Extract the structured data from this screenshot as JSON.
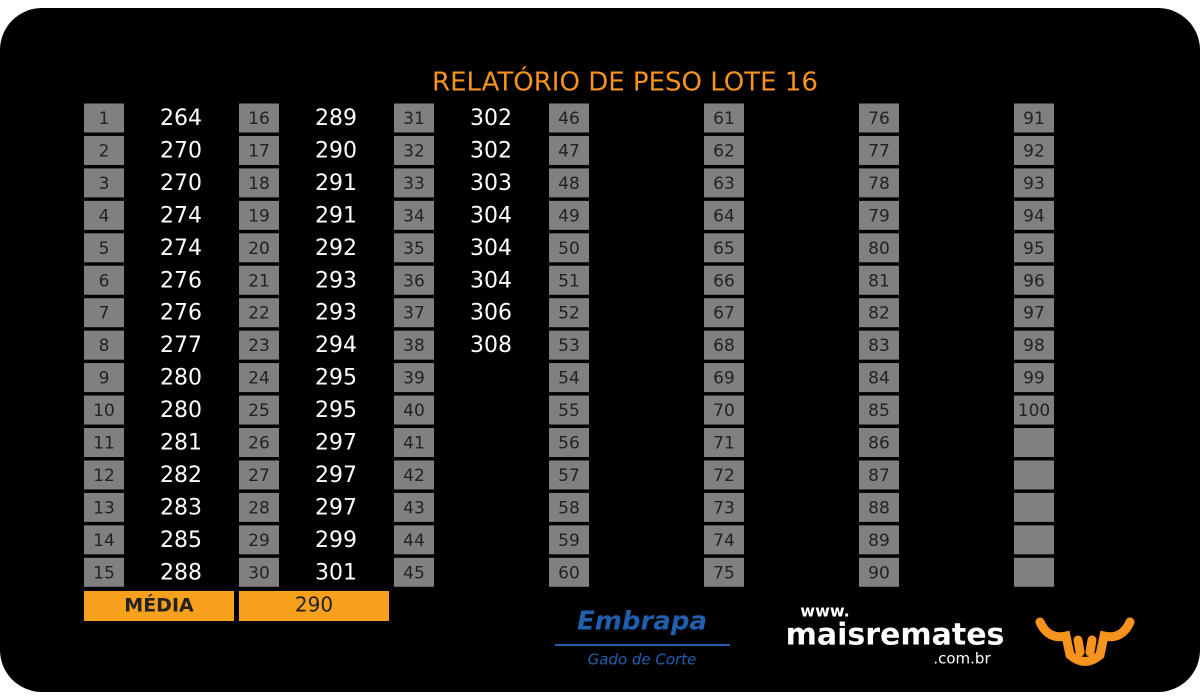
{
  "title": "RELATÓRIO DE PESO LOTE 16",
  "numbers": [
    1,
    2,
    3,
    4,
    5,
    6,
    7,
    8,
    9,
    10,
    11,
    12,
    13,
    14,
    15,
    16,
    17,
    18,
    19,
    20,
    21,
    22,
    23,
    24,
    25,
    26,
    27,
    28,
    29,
    30,
    31,
    32,
    33,
    34,
    35,
    36,
    37,
    38,
    39,
    40,
    41,
    42,
    43,
    44,
    45,
    46,
    47,
    48,
    49,
    50,
    51,
    52,
    53,
    54,
    55,
    56,
    57,
    58,
    59,
    60,
    61,
    62,
    63,
    64,
    65,
    66,
    67,
    68,
    69,
    70,
    71,
    72,
    73,
    74,
    75,
    76,
    77,
    78,
    79,
    80,
    81,
    82,
    83,
    84,
    85,
    86,
    87,
    88,
    89,
    90,
    91,
    92,
    93,
    94,
    95,
    96,
    97,
    98,
    99,
    100
  ],
  "weights": [
    264,
    270,
    270,
    274,
    274,
    276,
    276,
    277,
    280,
    280,
    281,
    282,
    283,
    285,
    288,
    289,
    290,
    291,
    291,
    292,
    293,
    293,
    294,
    295,
    295,
    297,
    297,
    297,
    299,
    301,
    302,
    302,
    303,
    304,
    304,
    304,
    306,
    308
  ],
  "average": {
    "label": "MÉDIA",
    "value": 290
  },
  "logos": {
    "embrapa": "Embrapa",
    "embrapa_sub": "Gado de Corte",
    "site_prefix": "www.",
    "site_name": "maisremates",
    "site_suffix": ".com.br"
  }
}
